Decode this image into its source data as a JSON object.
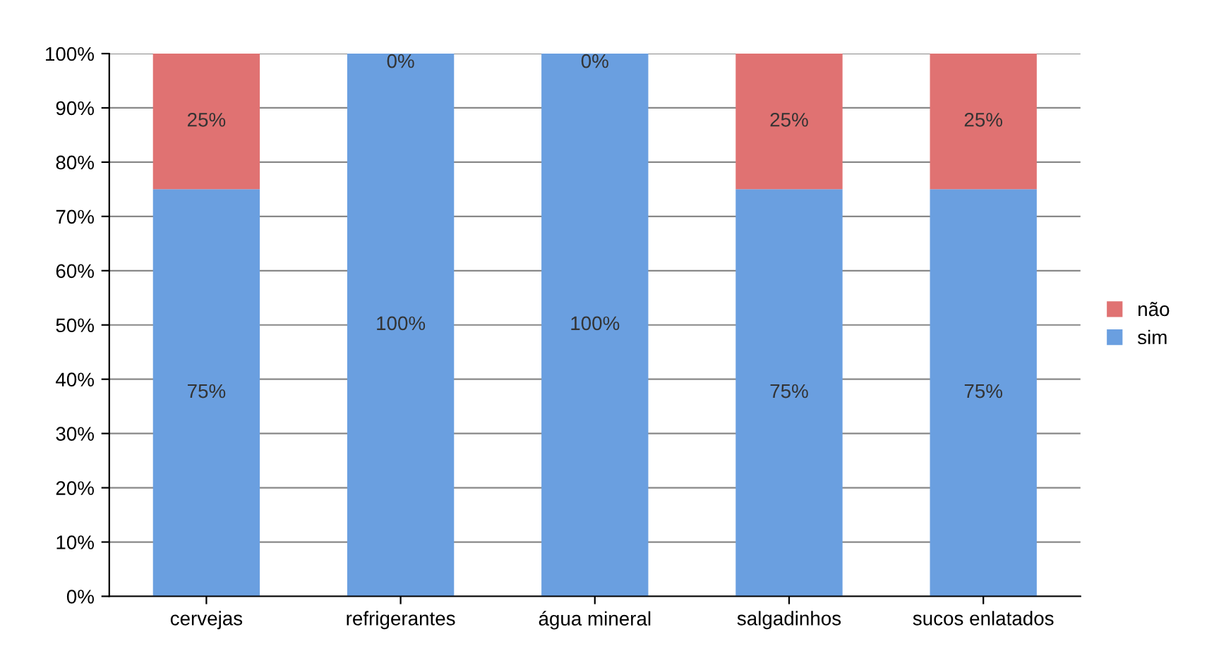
{
  "chart_data": {
    "type": "bar",
    "stacked": true,
    "categories": [
      "cervejas",
      "refrigerantes",
      "água mineral",
      "salgadinhos",
      "sucos enlatados"
    ],
    "series": [
      {
        "name": "sim",
        "color": "#6a9fe0",
        "values": [
          75,
          100,
          100,
          75,
          75
        ],
        "value_labels": [
          "75%",
          "100%",
          "100%",
          "75%",
          "75%"
        ]
      },
      {
        "name": "não",
        "color": "#e07272",
        "values": [
          25,
          0,
          0,
          25,
          25
        ],
        "value_labels": [
          "25%",
          "0%",
          "0%",
          "25%",
          "25%"
        ]
      }
    ],
    "ylim": [
      0,
      100
    ],
    "yticks": [
      {
        "value": 0,
        "label": "0%"
      },
      {
        "value": 10,
        "label": "10%"
      },
      {
        "value": 20,
        "label": "20%"
      },
      {
        "value": 30,
        "label": "30%"
      },
      {
        "value": 40,
        "label": "40%"
      },
      {
        "value": 50,
        "label": "50%"
      },
      {
        "value": 60,
        "label": "60%"
      },
      {
        "value": 70,
        "label": "70%"
      },
      {
        "value": 80,
        "label": "80%"
      },
      {
        "value": 90,
        "label": "90%"
      },
      {
        "value": 100,
        "label": "100%"
      }
    ],
    "grid": "y",
    "legend": "right"
  }
}
